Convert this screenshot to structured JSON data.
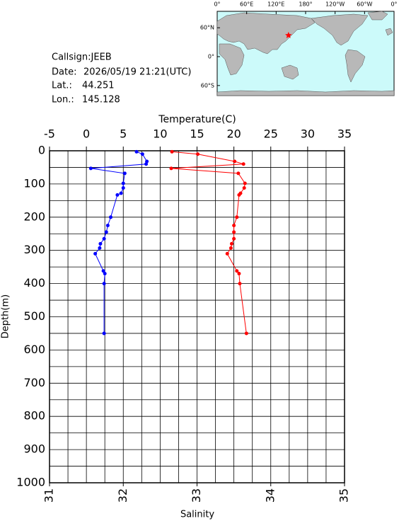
{
  "info": {
    "callsign": "Callsign:JEEB",
    "date_label": "Date:",
    "date": "2026/05/19 21:21(UTC)",
    "lat_label": "Lat.:",
    "lat": 44.251,
    "lon_label": "Lon.:",
    "lon": 145.128
  },
  "map": {
    "lon_ticks": [
      {
        "value": 0,
        "label": "0°"
      },
      {
        "value": 60,
        "label": "60°E"
      },
      {
        "value": 120,
        "label": "120°E"
      },
      {
        "value": 180,
        "label": "180°"
      },
      {
        "value": 240,
        "label": "120°W"
      },
      {
        "value": 300,
        "label": "60°W"
      },
      {
        "value": 360,
        "label": "0°"
      }
    ],
    "lat_ticks": [
      {
        "value": 60,
        "label": "60°N"
      },
      {
        "value": 0,
        "label": "0°"
      },
      {
        "value": -60,
        "label": "60°S"
      }
    ],
    "marker_color": "#ff0000"
  },
  "chart_data": {
    "type": "line",
    "x_label": "Salinity",
    "x2_label": "Temperature(C)",
    "y_label": "Depth(m)",
    "xlim": [
      31,
      35
    ],
    "xticks": [
      31,
      32,
      33,
      34,
      35
    ],
    "x2lim": [
      -5,
      35
    ],
    "x2ticks": [
      -5,
      0,
      5,
      10,
      15,
      20,
      25,
      30,
      35
    ],
    "x2minor_ticks": [
      -2.5,
      2.5,
      7.5,
      12.5,
      17.5,
      22.5,
      27.5,
      32.5
    ],
    "ylim": [
      0,
      1000
    ],
    "yticks": [
      0,
      100,
      200,
      300,
      400,
      500,
      600,
      700,
      800,
      900,
      1000
    ],
    "yminor_ticks": [
      50,
      150,
      250,
      350,
      450,
      550,
      650,
      750,
      850,
      950
    ],
    "y_inverted": true,
    "grid": true,
    "y": [
      3,
      10,
      32,
      40,
      53,
      68,
      98,
      112,
      128,
      133,
      200,
      225,
      245,
      265,
      280,
      293,
      310,
      362,
      370,
      400,
      550
    ],
    "series": [
      {
        "color": "#0000ff",
        "axis": "x2",
        "values": [
          6.8,
          7.6,
          8.2,
          8.1,
          0.6,
          5.2,
          5.0,
          5.0,
          4.7,
          4.2,
          3.3,
          2.9,
          2.7,
          2.4,
          1.9,
          1.8,
          1.2,
          2.3,
          2.5,
          2.4,
          2.4
        ]
      },
      {
        "color": "#ff0000",
        "axis": "x",
        "values": [
          32.66,
          33.01,
          33.51,
          33.63,
          32.65,
          33.56,
          33.65,
          33.64,
          33.59,
          33.57,
          33.54,
          33.5,
          33.5,
          33.5,
          33.47,
          33.46,
          33.41,
          33.54,
          33.57,
          33.58,
          33.67
        ]
      }
    ]
  }
}
